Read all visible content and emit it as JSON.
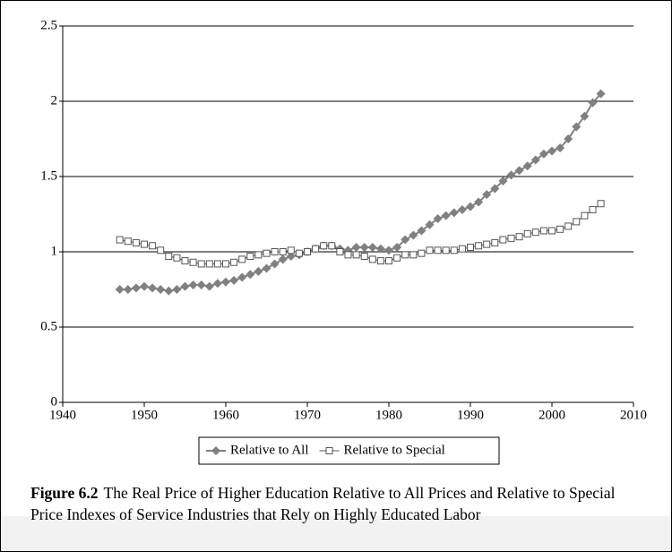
{
  "chart_data": {
    "type": "line",
    "x": [
      1947,
      1948,
      1949,
      1950,
      1951,
      1952,
      1953,
      1954,
      1955,
      1956,
      1957,
      1958,
      1959,
      1960,
      1961,
      1962,
      1963,
      1964,
      1965,
      1966,
      1967,
      1968,
      1969,
      1970,
      1971,
      1972,
      1973,
      1974,
      1975,
      1976,
      1977,
      1978,
      1979,
      1980,
      1981,
      1982,
      1983,
      1984,
      1985,
      1986,
      1987,
      1988,
      1989,
      1990,
      1991,
      1992,
      1993,
      1994,
      1995,
      1996,
      1997,
      1998,
      1999,
      2000,
      2001,
      2002,
      2003,
      2004,
      2005,
      2006
    ],
    "series": [
      {
        "name": "Relative to All",
        "color": "#808080",
        "marker": "diamond",
        "values": [
          0.75,
          0.75,
          0.76,
          0.77,
          0.76,
          0.75,
          0.74,
          0.75,
          0.77,
          0.78,
          0.78,
          0.77,
          0.79,
          0.8,
          0.81,
          0.83,
          0.85,
          0.87,
          0.89,
          0.92,
          0.95,
          0.97,
          0.98,
          1.0,
          1.02,
          1.04,
          1.04,
          1.02,
          1.01,
          1.03,
          1.03,
          1.03,
          1.02,
          1.01,
          1.03,
          1.08,
          1.11,
          1.14,
          1.18,
          1.22,
          1.24,
          1.26,
          1.28,
          1.3,
          1.33,
          1.38,
          1.42,
          1.47,
          1.51,
          1.54,
          1.57,
          1.61,
          1.65,
          1.67,
          1.69,
          1.75,
          1.83,
          1.9,
          1.99,
          2.05
        ]
      },
      {
        "name": "Relative to Special",
        "color": "#555555",
        "marker": "square",
        "values": [
          1.08,
          1.07,
          1.06,
          1.05,
          1.04,
          1.01,
          0.97,
          0.96,
          0.94,
          0.93,
          0.92,
          0.92,
          0.92,
          0.92,
          0.93,
          0.95,
          0.97,
          0.98,
          0.99,
          1.0,
          1.0,
          1.01,
          0.99,
          1.0,
          1.02,
          1.04,
          1.04,
          1.0,
          0.98,
          0.98,
          0.97,
          0.95,
          0.94,
          0.94,
          0.96,
          0.98,
          0.98,
          0.99,
          1.01,
          1.01,
          1.01,
          1.01,
          1.02,
          1.03,
          1.04,
          1.05,
          1.06,
          1.08,
          1.09,
          1.1,
          1.12,
          1.13,
          1.14,
          1.14,
          1.15,
          1.17,
          1.2,
          1.24,
          1.28,
          1.32
        ]
      }
    ],
    "xlim": [
      1940,
      2010
    ],
    "xticks": [
      1940,
      1950,
      1960,
      1970,
      1980,
      1990,
      2000,
      2010
    ],
    "ylim": [
      0,
      2.5
    ],
    "yticks": [
      0,
      0.5,
      1,
      1.5,
      2,
      2.5
    ],
    "grid": true,
    "legend": "bottom"
  },
  "caption": {
    "label": "Figure 6.2",
    "text": "The Real Price of Higher Education Relative to All Prices and Relative to Special Price Indexes of Service Industries that Rely on Highly Educated Labor"
  }
}
